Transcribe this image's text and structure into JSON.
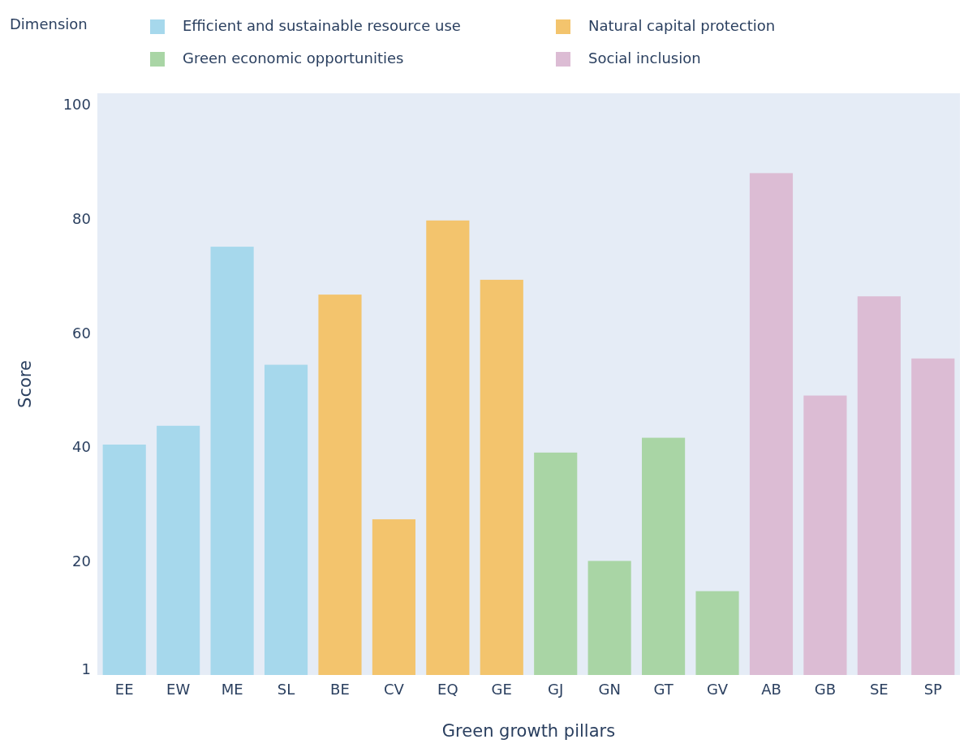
{
  "chart_data": {
    "type": "bar",
    "xlabel": "Green growth pillars",
    "ylabel": "Score",
    "legend_title": "Dimension",
    "legend": "top",
    "categories": [
      "EE",
      "EW",
      "ME",
      "SL",
      "BE",
      "CV",
      "EQ",
      "GE",
      "GJ",
      "GN",
      "GT",
      "GV",
      "AB",
      "GB",
      "SE",
      "SP"
    ],
    "series": [
      {
        "name": "Efficient and sustainable resource use",
        "color": "#a6d8ec",
        "values": [
          40.4,
          43.7,
          75.1,
          54.4,
          null,
          null,
          null,
          null,
          null,
          null,
          null,
          null,
          null,
          null,
          null,
          null
        ]
      },
      {
        "name": "Natural capital protection",
        "color": "#f3c46d",
        "values": [
          null,
          null,
          null,
          null,
          66.7,
          27.3,
          79.7,
          69.3,
          null,
          null,
          null,
          null,
          null,
          null,
          null,
          null
        ]
      },
      {
        "name": "Green economic opportunities",
        "color": "#a9d5a5",
        "values": [
          null,
          null,
          null,
          null,
          null,
          null,
          null,
          null,
          39,
          20,
          41.6,
          14.7,
          null,
          null,
          null,
          null
        ]
      },
      {
        "name": "Social inclusion",
        "color": "#dcbcd4",
        "values": [
          null,
          null,
          null,
          null,
          null,
          null,
          null,
          null,
          null,
          null,
          null,
          null,
          88,
          49,
          66.4,
          55.5
        ]
      }
    ],
    "ylim": [
      0,
      102
    ],
    "yticks": [
      1,
      20,
      40,
      60,
      80,
      100
    ],
    "grid": false
  }
}
